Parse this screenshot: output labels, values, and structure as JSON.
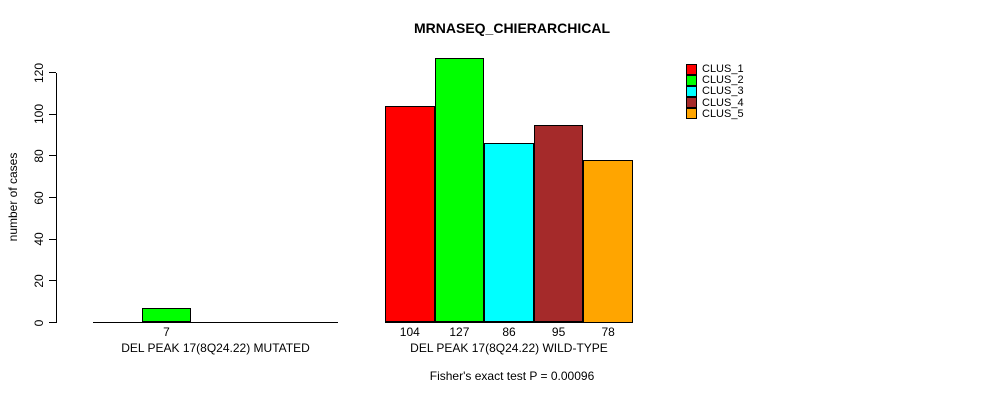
{
  "chart_data": {
    "type": "bar",
    "title": "MRNASEQ_CHIERARCHICAL",
    "ylabel": "number of cases",
    "xlabel": "",
    "ylim": [
      0,
      120
    ],
    "yticks": [
      0,
      20,
      40,
      60,
      80,
      100,
      120
    ],
    "grid": false,
    "legend_position": "top-right",
    "categories": [
      "DEL PEAK 17(8Q24.22) MUTATED",
      "DEL PEAK 17(8Q24.22) WILD-TYPE"
    ],
    "series": [
      {
        "name": "CLUS_1",
        "color": "#FF0000",
        "values": [
          0,
          104
        ]
      },
      {
        "name": "CLUS_2",
        "color": "#00FF00",
        "values": [
          7,
          127
        ]
      },
      {
        "name": "CLUS_3",
        "color": "#00FFFF",
        "values": [
          0,
          86
        ]
      },
      {
        "name": "CLUS_4",
        "color": "#A52A2A",
        "values": [
          0,
          95
        ]
      },
      {
        "name": "CLUS_5",
        "color": "#FFA500",
        "values": [
          0,
          78
        ]
      }
    ],
    "shown_value_labels": {
      "DEL PEAK 17(8Q24.22) MUTATED": [
        "7"
      ],
      "DEL PEAK 17(8Q24.22) WILD-TYPE": [
        "104",
        "127",
        "86",
        "95",
        "78"
      ]
    },
    "annotation": "Fisher's exact test P = 0.00096"
  }
}
